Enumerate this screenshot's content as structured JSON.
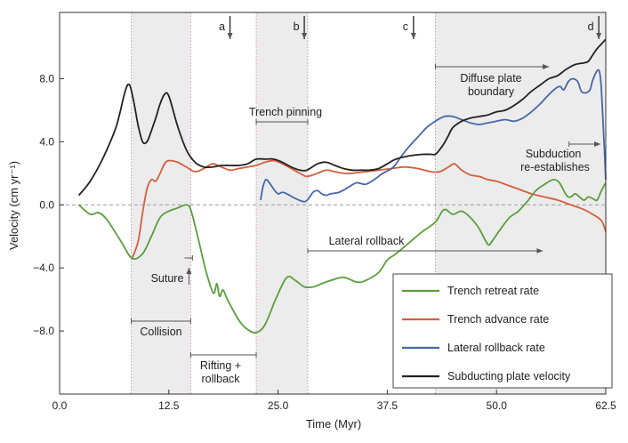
{
  "chart_data": {
    "type": "line",
    "xlabel": "Time (Myr)",
    "ylabel": "Velocity (cm yr⁻¹)",
    "xlim": [
      0,
      62.5
    ],
    "ylim": [
      -12,
      12.2
    ],
    "x_ticks": [
      0,
      12.5,
      25,
      37.5,
      50,
      62.5
    ],
    "x_tick_labels": [
      "0.0",
      "12.5",
      "25.0",
      "37.5",
      "50.0",
      "62.5"
    ],
    "y_ticks": [
      8,
      4,
      0,
      -4,
      -8
    ],
    "y_tick_labels": [
      "8.0",
      "4.0",
      "0.0",
      "−4.0",
      "−8.0"
    ],
    "legend_position": "bottom-right",
    "shaded_intervals": [
      [
        8.2,
        15.0
      ],
      [
        22.5,
        28.4
      ],
      [
        43.0,
        62.5
      ]
    ],
    "series": [
      {
        "name": "Trench retreat rate",
        "color": "#5a9e3c",
        "x": [
          2.2,
          3.5,
          4.5,
          5.5,
          7.0,
          8.3,
          9.5,
          10.5,
          11.5,
          12.5,
          13.5,
          14.5,
          15.0,
          15.8,
          16.8,
          17.6,
          18.0,
          18.3,
          18.7,
          19.2,
          20.5,
          21.5,
          22.5,
          23.5,
          24.8,
          26.0,
          27.0,
          28.0,
          29.0,
          30.0,
          31.0,
          32.5,
          34.0,
          35.0,
          36.5,
          37.5,
          38.5,
          40.0,
          41.5,
          43.0,
          44.0,
          45.0,
          46.0,
          47.0,
          48.0,
          49.0,
          49.5,
          50.5,
          51.5,
          52.5,
          53.5,
          54.5,
          55.5,
          56.5,
          57.2,
          58.0,
          58.5,
          59.0,
          59.5,
          60.0,
          60.5,
          61.0,
          61.5,
          62.0,
          62.5
        ],
        "y": [
          0.0,
          -0.6,
          -0.5,
          -1.0,
          -2.3,
          -3.4,
          -3.1,
          -2.0,
          -0.8,
          -0.4,
          -0.2,
          0.0,
          -0.3,
          -2.0,
          -4.3,
          -5.6,
          -5.0,
          -5.8,
          -5.4,
          -6.0,
          -7.3,
          -7.9,
          -8.1,
          -7.6,
          -5.9,
          -4.6,
          -4.8,
          -5.2,
          -5.2,
          -5.0,
          -4.8,
          -4.6,
          -4.9,
          -4.8,
          -4.3,
          -3.5,
          -3.1,
          -2.4,
          -1.7,
          -1.1,
          -0.3,
          -0.6,
          -0.4,
          -0.8,
          -1.5,
          -2.5,
          -2.3,
          -1.5,
          -0.8,
          -0.4,
          0.2,
          0.9,
          1.3,
          1.6,
          1.4,
          0.6,
          0.5,
          0.7,
          0.5,
          0.3,
          0.5,
          0.4,
          0.3,
          0.9,
          1.4
        ]
      },
      {
        "name": "Trench advance rate",
        "color": "#d2603f",
        "x": [
          8.3,
          9.0,
          9.5,
          10.0,
          10.5,
          11.0,
          11.5,
          12.0,
          12.5,
          13.5,
          14.5,
          15.5,
          16.5,
          17.5,
          18.5,
          19.5,
          20.5,
          21.5,
          22.5,
          23.5,
          24.5,
          25.5,
          26.5,
          27.5,
          28.3,
          29.5,
          30.5,
          31.5,
          32.5,
          33.5,
          35.0,
          36.5,
          38.0,
          39.5,
          41.0,
          42.5,
          43.5,
          44.5,
          45.2,
          46.0,
          47.0,
          48.0,
          49.0,
          50.0,
          51.0,
          52.5,
          54.0,
          55.5,
          57.0,
          58.5,
          60.0,
          61.0,
          62.0,
          62.5
        ],
        "y": [
          -3.4,
          -2.3,
          -0.5,
          1.0,
          1.6,
          1.5,
          2.0,
          2.6,
          2.8,
          2.7,
          2.4,
          2.1,
          2.3,
          2.6,
          2.4,
          2.2,
          2.3,
          2.4,
          2.5,
          2.7,
          2.8,
          2.6,
          2.3,
          2.0,
          1.8,
          2.0,
          2.2,
          2.1,
          2.0,
          2.0,
          2.1,
          2.2,
          2.3,
          2.4,
          2.3,
          2.1,
          2.1,
          2.4,
          2.6,
          2.2,
          1.9,
          1.8,
          1.6,
          1.5,
          1.3,
          1.0,
          0.7,
          0.5,
          0.3,
          0.0,
          -0.3,
          -0.6,
          -1.0,
          -1.7
        ]
      },
      {
        "name": "Lateral rollback rate",
        "color": "#4667a8",
        "x": [
          23.0,
          23.3,
          23.6,
          24.0,
          24.5,
          25.0,
          25.5,
          26.0,
          27.0,
          28.0,
          28.5,
          29.0,
          29.5,
          30.0,
          30.5,
          31.0,
          32.0,
          33.0,
          34.0,
          35.0,
          36.0,
          37.0,
          38.0,
          38.5,
          39.0,
          40.0,
          41.0,
          42.0,
          43.0,
          44.0,
          45.0,
          46.0,
          47.0,
          48.0,
          49.0,
          50.0,
          51.0,
          52.0,
          53.0,
          54.0,
          55.0,
          56.0,
          56.8,
          57.3,
          57.7,
          58.2,
          58.7,
          59.3,
          59.7,
          60.2,
          60.7,
          61.0,
          61.5,
          61.8,
          62.0,
          62.3,
          62.5
        ],
        "y": [
          0.3,
          1.2,
          1.6,
          1.4,
          1.0,
          0.7,
          0.8,
          0.7,
          0.4,
          0.2,
          0.4,
          0.8,
          0.9,
          0.7,
          0.6,
          0.7,
          0.8,
          1.1,
          1.4,
          1.3,
          1.6,
          2.0,
          2.3,
          2.6,
          3.0,
          3.7,
          4.3,
          4.9,
          5.3,
          5.6,
          5.6,
          5.4,
          5.2,
          5.1,
          5.2,
          5.3,
          5.4,
          5.3,
          5.5,
          5.9,
          6.4,
          7.0,
          7.4,
          7.5,
          7.3,
          7.8,
          8.0,
          7.8,
          7.2,
          7.1,
          7.3,
          7.9,
          8.5,
          8.4,
          7.3,
          4.0,
          1.6
        ]
      },
      {
        "name": "Subducting plate velocity",
        "color": "#222222",
        "x": [
          2.2,
          3.5,
          5.0,
          6.5,
          7.5,
          8.0,
          8.5,
          9.0,
          9.5,
          10.0,
          10.5,
          11.0,
          11.5,
          12.0,
          12.5,
          13.5,
          14.5,
          15.5,
          16.5,
          17.5,
          18.5,
          19.5,
          20.5,
          21.5,
          22.5,
          23.5,
          24.5,
          25.5,
          26.5,
          27.5,
          28.3,
          29.5,
          30.5,
          31.5,
          32.5,
          33.5,
          34.5,
          35.5,
          36.5,
          37.5,
          38.5,
          40.0,
          41.5,
          42.5,
          43.0,
          43.5,
          44.0,
          44.5,
          45.0,
          46.0,
          47.0,
          48.0,
          49.0,
          50.0,
          51.0,
          52.0,
          53.0,
          54.0,
          55.0,
          56.0,
          57.0,
          58.0,
          59.0,
          60.0,
          60.5,
          61.0,
          61.5,
          62.0,
          62.5
        ],
        "y": [
          0.6,
          1.5,
          3.0,
          5.0,
          7.2,
          7.6,
          6.5,
          5.0,
          4.0,
          4.0,
          4.7,
          5.5,
          6.4,
          7.0,
          6.9,
          5.0,
          3.5,
          2.7,
          2.4,
          2.4,
          2.5,
          2.5,
          2.5,
          2.6,
          2.9,
          2.9,
          2.9,
          2.7,
          2.4,
          2.2,
          2.2,
          2.6,
          2.7,
          2.5,
          2.3,
          2.2,
          2.2,
          2.2,
          2.3,
          2.6,
          2.9,
          3.1,
          3.2,
          3.2,
          3.2,
          3.5,
          3.9,
          4.4,
          4.9,
          5.3,
          5.5,
          5.6,
          5.7,
          5.9,
          6.0,
          6.3,
          6.7,
          7.2,
          7.6,
          8.0,
          8.2,
          8.6,
          8.9,
          9.0,
          9.1,
          9.5,
          9.9,
          10.2,
          10.5
        ]
      }
    ],
    "event_markers": [
      {
        "label": "a",
        "x": 19.5
      },
      {
        "label": "b",
        "x": 28.0
      },
      {
        "label": "c",
        "x": 40.5
      },
      {
        "label": "d",
        "x": 61.7
      }
    ],
    "annotations": {
      "trench_pinning": "Trench pinning",
      "diffuse_line1": "Diffuse plate",
      "diffuse_line2": "boundary",
      "subduction_line1": "Subduction",
      "subduction_line2": "re-establishes",
      "lateral_rollback": "Lateral rollback",
      "suture": "Suture",
      "collision": "Collision",
      "rifting_line1": "Rifting +",
      "rifting_line2": "rollback"
    }
  }
}
